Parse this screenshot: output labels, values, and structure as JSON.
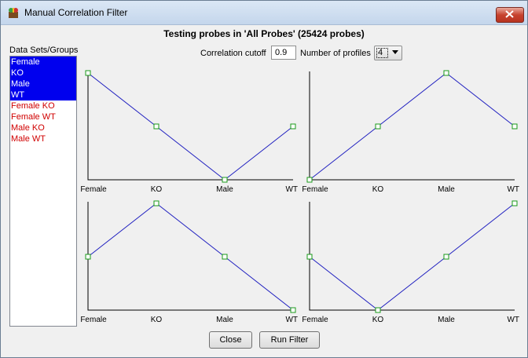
{
  "window": {
    "title": "Manual Correlation Filter"
  },
  "heading": "Testing probes in 'All Probes' (25424 probes)",
  "controls": {
    "cutoff_label": "Correlation cutoff",
    "cutoff_value": "0.9",
    "profiles_label": "Number of profiles",
    "profiles_value": "4"
  },
  "groups": {
    "label": "Data Sets/Groups",
    "items": [
      {
        "label": "Female",
        "selected": true
      },
      {
        "label": "KO",
        "selected": true
      },
      {
        "label": "Male",
        "selected": true
      },
      {
        "label": "WT",
        "selected": true
      },
      {
        "label": "Female KO",
        "selected": false
      },
      {
        "label": "Female WT",
        "selected": false
      },
      {
        "label": "Male KO",
        "selected": false
      },
      {
        "label": "Male WT",
        "selected": false
      }
    ]
  },
  "buttons": {
    "close": "Close",
    "run": "Run Filter"
  },
  "colors": {
    "line": "#2020c0",
    "marker": "#1a9a1a",
    "selected_bg": "#0000ee",
    "unselected_text": "#d00000"
  },
  "chart_data": [
    {
      "type": "line",
      "categories": [
        "Female",
        "KO",
        "Male",
        "WT"
      ],
      "values": [
        1,
        0.5,
        0,
        0.5
      ]
    },
    {
      "type": "line",
      "categories": [
        "Female",
        "KO",
        "Male",
        "WT"
      ],
      "values": [
        0,
        0.5,
        1,
        0.5
      ]
    },
    {
      "type": "line",
      "categories": [
        "Female",
        "KO",
        "Male",
        "WT"
      ],
      "values": [
        0.5,
        1,
        0.5,
        0
      ]
    },
    {
      "type": "line",
      "categories": [
        "Female",
        "KO",
        "Male",
        "WT"
      ],
      "values": [
        0.5,
        0,
        0.5,
        1
      ]
    }
  ]
}
